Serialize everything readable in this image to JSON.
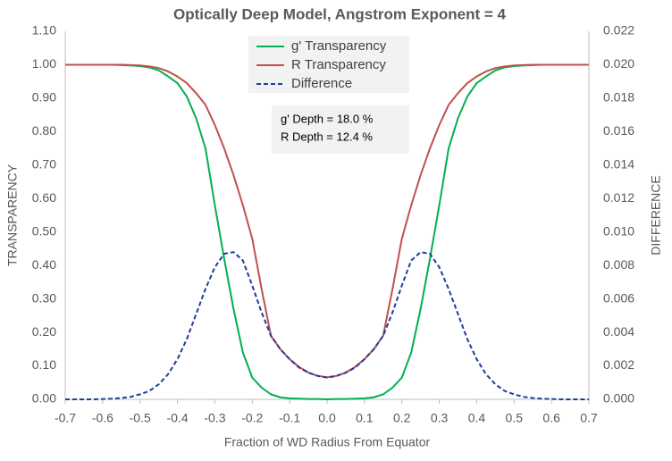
{
  "chart_data": {
    "type": "line",
    "title": "Optically Deep Model, Angstrom Exponent = 4",
    "x_label": "Fraction of WD Radius From Equator",
    "y_label": "TRANSPARENCY",
    "y2_label": "DIFFERENCE",
    "annotations": [
      "g' Depth = 18.0 %",
      "R  Depth = 12.4 %"
    ],
    "grid": false,
    "legend": "top",
    "x": [
      -0.7,
      -0.675,
      -0.65,
      -0.625,
      -0.6,
      -0.575,
      -0.55,
      -0.525,
      -0.5,
      -0.475,
      -0.45,
      -0.425,
      -0.4,
      -0.375,
      -0.35,
      -0.325,
      -0.3,
      -0.275,
      -0.25,
      -0.225,
      -0.2,
      -0.175,
      -0.15,
      -0.125,
      -0.1,
      -0.075,
      -0.05,
      -0.025,
      0,
      0.025,
      0.05,
      0.075,
      0.1,
      0.125,
      0.15,
      0.175,
      0.2,
      0.225,
      0.25,
      0.275,
      0.3,
      0.325,
      0.35,
      0.375,
      0.4,
      0.425,
      0.45,
      0.475,
      0.5,
      0.525,
      0.55,
      0.575,
      0.6,
      0.625,
      0.65,
      0.675,
      0.7
    ],
    "xlim": [
      -0.7,
      0.7
    ],
    "xticks": [
      -0.7,
      -0.6,
      -0.5,
      -0.4,
      -0.3,
      -0.2,
      -0.1,
      {
        "value": 0,
        "label": "0.0"
      },
      0.1,
      0.2,
      0.3,
      0.4,
      0.5,
      0.6,
      0.7
    ],
    "ylim": [
      0,
      1.1
    ],
    "yticks": [
      {
        "value": 0,
        "label": "0.00"
      },
      {
        "value": 0.1,
        "label": "0.10"
      },
      {
        "value": 0.2,
        "label": "0.20"
      },
      {
        "value": 0.3,
        "label": "0.30"
      },
      {
        "value": 0.4,
        "label": "0.40"
      },
      {
        "value": 0.5,
        "label": "0.50"
      },
      {
        "value": 0.6,
        "label": "0.60"
      },
      {
        "value": 0.7,
        "label": "0.70"
      },
      {
        "value": 0.8,
        "label": "0.80"
      },
      {
        "value": 0.9,
        "label": "0.90"
      },
      {
        "value": 1,
        "label": "1.00"
      },
      {
        "value": 1.1,
        "label": "1.10"
      }
    ],
    "y2lim": [
      0,
      0.022
    ],
    "y2ticks": [
      {
        "value": 0,
        "label": "0.000"
      },
      {
        "value": 0.002,
        "label": "0.002"
      },
      {
        "value": 0.004,
        "label": "0.004"
      },
      {
        "value": 0.006,
        "label": "0.006"
      },
      {
        "value": 0.008,
        "label": "0.008"
      },
      {
        "value": 0.01,
        "label": "0.010"
      },
      {
        "value": 0.012,
        "label": "0.012"
      },
      {
        "value": 0.014,
        "label": "0.014"
      },
      {
        "value": 0.016,
        "label": "0.016"
      },
      {
        "value": 0.018,
        "label": "0.018"
      },
      {
        "value": 0.02,
        "label": "0.020"
      },
      {
        "value": 0.022,
        "label": "0.022"
      }
    ],
    "series": [
      {
        "name": "g' Transparency",
        "color": "#00b050",
        "line_style": "solid",
        "values": [
          1,
          1,
          1,
          1,
          1,
          1,
          0.999,
          0.998,
          0.996,
          0.992,
          0.983,
          0.965,
          0.945,
          0.905,
          0.84,
          0.75,
          0.58,
          0.42,
          0.27,
          0.14,
          0.065,
          0.035,
          0.015,
          0.006,
          0.003,
          0.002,
          0.001,
          0.001,
          0,
          0.001,
          0.001,
          0.002,
          0.003,
          0.006,
          0.015,
          0.035,
          0.065,
          0.14,
          0.27,
          0.42,
          0.58,
          0.75,
          0.84,
          0.905,
          0.945,
          0.965,
          0.983,
          0.992,
          0.996,
          0.998,
          0.999,
          1,
          1,
          1,
          1,
          1,
          1
        ]
      },
      {
        "name": "R Transparency",
        "color": "#c0504d",
        "line_style": "solid",
        "values": [
          1,
          1,
          1,
          1,
          1,
          1,
          1,
          0.999,
          0.998,
          0.995,
          0.99,
          0.98,
          0.965,
          0.945,
          0.915,
          0.88,
          0.82,
          0.75,
          0.67,
          0.58,
          0.48,
          0.33,
          0.19,
          0.15,
          0.12,
          0.097,
          0.08,
          0.07,
          0.066,
          0.07,
          0.08,
          0.097,
          0.12,
          0.15,
          0.19,
          0.33,
          0.48,
          0.58,
          0.67,
          0.75,
          0.82,
          0.88,
          0.915,
          0.945,
          0.965,
          0.98,
          0.99,
          0.995,
          0.998,
          0.999,
          1,
          1,
          1,
          1,
          1,
          1,
          1
        ]
      },
      {
        "name": "Difference",
        "color": "#1f3d99",
        "line_style": "dashed",
        "axis": "y2",
        "values": [
          0,
          0,
          0,
          0,
          2e-05,
          4e-05,
          8e-05,
          0.00015,
          0.0003,
          0.0005,
          0.0009,
          0.0015,
          0.0024,
          0.0036,
          0.0051,
          0.0066,
          0.0079,
          0.0087,
          0.0088,
          0.0083,
          0.0068,
          0.0052,
          0.0038,
          0.003,
          0.0024,
          0.0019,
          0.0016,
          0.0014,
          0.0013,
          0.0014,
          0.0016,
          0.0019,
          0.0024,
          0.003,
          0.0038,
          0.0052,
          0.0068,
          0.0083,
          0.0088,
          0.0087,
          0.0079,
          0.0066,
          0.0051,
          0.0036,
          0.0024,
          0.0015,
          0.0009,
          0.0005,
          0.0003,
          0.00015,
          8e-05,
          4e-05,
          2e-05,
          0,
          0,
          0,
          0
        ]
      }
    ]
  }
}
